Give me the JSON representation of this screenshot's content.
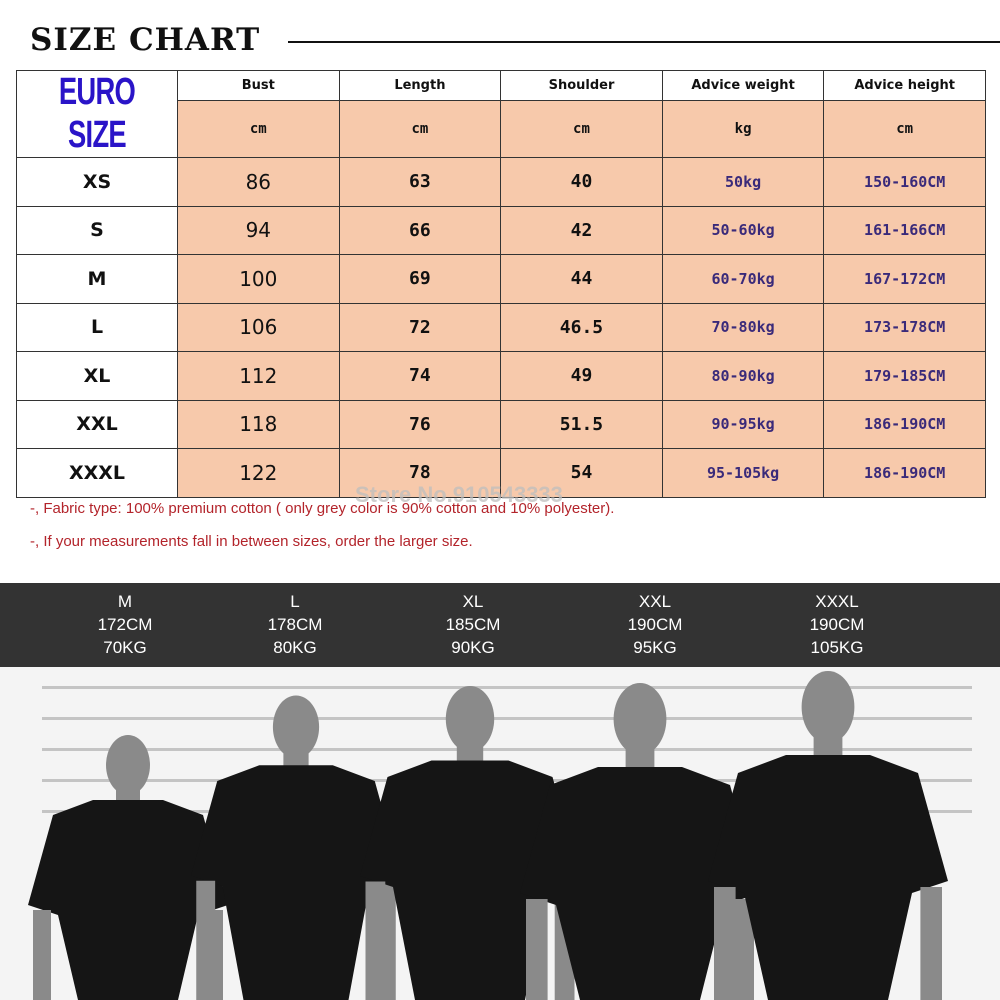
{
  "title": "SIZE CHART",
  "table": {
    "corner": "EURO SIZE",
    "headers": [
      "Bust",
      "Length",
      "Shoulder",
      "Advice weight",
      "Advice height"
    ],
    "units": [
      "cm",
      "cm",
      "cm",
      "kg",
      "cm"
    ],
    "rows": [
      [
        "XS",
        "86",
        "63",
        "40",
        "50kg",
        "150-160CM"
      ],
      [
        "S",
        "94",
        "66",
        "42",
        "50-60kg",
        "161-166CM"
      ],
      [
        "M",
        "100",
        "69",
        "44",
        "60-70kg",
        "167-172CM"
      ],
      [
        "L",
        "106",
        "72",
        "46.5",
        "70-80kg",
        "173-178CM"
      ],
      [
        "XL",
        "112",
        "74",
        "49",
        "80-90kg",
        "179-185CM"
      ],
      [
        "XXL",
        "118",
        "76",
        "51.5",
        "90-95kg",
        "186-190CM"
      ],
      [
        "XXXL",
        "122",
        "78",
        "54",
        "95-105kg",
        "186-190CM"
      ]
    ]
  },
  "notes": [
    "-, Fabric type: 100% premium cotton ( only grey color is 90% cotton and 10% polyester).",
    "-, If your measurements fall in between sizes, order the larger size."
  ],
  "watermark": "Store No.910543333",
  "models": [
    {
      "size": "M",
      "height": "172CM",
      "weight": "70KG"
    },
    {
      "size": "L",
      "height": "178CM",
      "weight": "80KG"
    },
    {
      "size": "XL",
      "height": "185CM",
      "weight": "90KG"
    },
    {
      "size": "XXL",
      "height": "190CM",
      "weight": "95KG"
    },
    {
      "size": "XXXL",
      "height": "190CM",
      "weight": "105KG"
    }
  ],
  "colors": {
    "peach": "#f7c9ab",
    "euro": "#2a14c8",
    "note": "#b3242b",
    "band": "#333333"
  }
}
